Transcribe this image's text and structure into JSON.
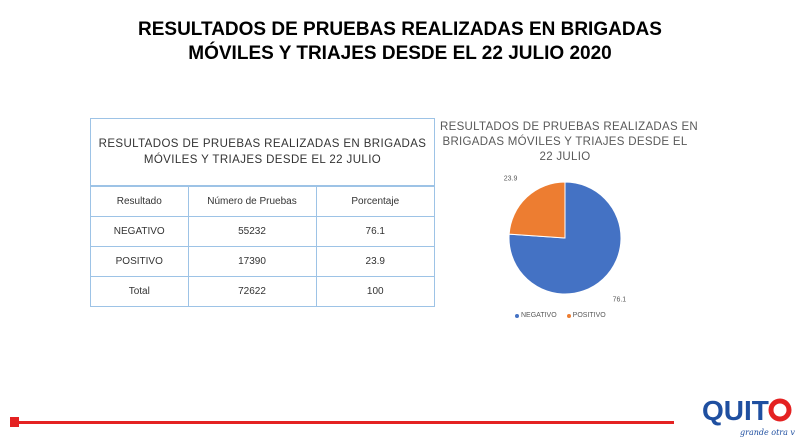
{
  "slide": {
    "title_line1": "RESULTADOS DE PRUEBAS REALIZADAS  EN BRIGADAS",
    "title_line2": "MÓVILES Y TRIAJES DESDE EL 22 JULIO 2020"
  },
  "table": {
    "caption_line1": "RESULTADOS  DE PRUEBAS  REALIZADAS  EN BRIGADAS",
    "caption_line2": "MÓVILES Y TRIAJES DESDE EL 22 JULIO",
    "headers": [
      "Resultado",
      "Número de Pruebas",
      "Porcentaje"
    ],
    "rows": [
      [
        "NEGATIVO",
        "55232",
        "76.1"
      ],
      [
        "POSITIVO",
        "17390",
        "23.9"
      ],
      [
        "Total",
        "72622",
        "100"
      ]
    ]
  },
  "chart_data": {
    "type": "pie",
    "title_line1": "RESULTADOS DE PRUEBAS REALIZADAS EN",
    "title_line2": "BRIGADAS MÓVILES Y TRIAJES DESDE EL",
    "title_line3": "22 JULIO",
    "categories": [
      "NEGATIVO",
      "POSITIVO"
    ],
    "values": [
      76.1,
      23.9
    ],
    "data_labels": [
      "76.1",
      "23.9"
    ],
    "colors": [
      "#4472c4",
      "#ed7d31"
    ],
    "legend_position": "bottom"
  },
  "colors": {
    "accent_red": "#e42222",
    "table_border": "#9dc3e6"
  },
  "logo": {
    "text": "QUITO",
    "tagline": "grande otra vez"
  }
}
